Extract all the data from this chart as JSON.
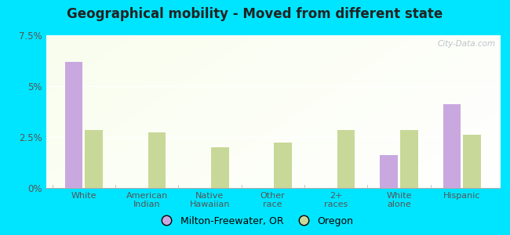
{
  "title": "Geographical mobility - Moved from different state",
  "categories": [
    "White",
    "American\nIndian",
    "Native\nHawaiian",
    "Other\nrace",
    "2+\nraces",
    "White\nalone",
    "Hispanic"
  ],
  "milton_values": [
    6.2,
    0.0,
    0.0,
    0.0,
    0.0,
    1.6,
    4.1
  ],
  "oregon_values": [
    2.85,
    2.75,
    2.0,
    2.25,
    2.85,
    2.85,
    2.6
  ],
  "milton_color": "#c9a8e0",
  "oregon_color": "#c8d898",
  "ylim": [
    0,
    7.5
  ],
  "yticks": [
    0,
    2.5,
    5.0,
    7.5
  ],
  "ytick_labels": [
    "0%",
    "2.5%",
    "5%",
    "7.5%"
  ],
  "outer_background": "#00e5ff",
  "legend_milton": "Milton-Freewater, OR",
  "legend_oregon": "Oregon",
  "watermark": "City-Data.com"
}
